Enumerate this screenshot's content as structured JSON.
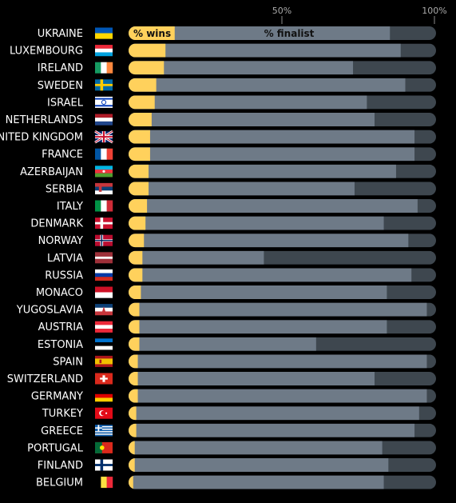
{
  "chart_data": {
    "type": "bar",
    "orientation": "horizontal",
    "stacked": true,
    "axis_ticks": [
      "50%",
      "100%"
    ],
    "xlim": [
      0,
      100
    ],
    "series_labels": {
      "wins": "% wins",
      "finalist": "% finalist"
    },
    "colors": {
      "wins": "#ffd15c",
      "finalist": "#6e7a87",
      "remainder": "#3e474f",
      "label": "#ffffff",
      "background": "#000000"
    },
    "rows": [
      {
        "country": "UKRAINE",
        "flag": "ukraine-flag",
        "wins": 15,
        "finalist": 85
      },
      {
        "country": "LUXEMBOURG",
        "flag": "luxembourg-flag",
        "wins": 12,
        "finalist": 88.5
      },
      {
        "country": "IRELAND",
        "flag": "ireland-flag",
        "wins": 11.5,
        "finalist": 73
      },
      {
        "country": "SWEDEN",
        "flag": "sweden-flag",
        "wins": 9,
        "finalist": 90
      },
      {
        "country": "ISRAEL",
        "flag": "israel-flag",
        "wins": 8.5,
        "finalist": 77.5
      },
      {
        "country": "NETHERLANDS",
        "flag": "netherlands-flag",
        "wins": 7.5,
        "finalist": 80
      },
      {
        "country": "UNITED KINGDOM",
        "flag": "united-kingdom-flag",
        "wins": 7,
        "finalist": 93
      },
      {
        "country": "FRANCE",
        "flag": "france-flag",
        "wins": 7,
        "finalist": 93
      },
      {
        "country": "AZERBAIJAN",
        "flag": "azerbaijan-flag",
        "wins": 6.5,
        "finalist": 87
      },
      {
        "country": "SERBIA",
        "flag": "serbia-flag",
        "wins": 6.5,
        "finalist": 73.5
      },
      {
        "country": "ITALY",
        "flag": "italy-flag",
        "wins": 6,
        "finalist": 94
      },
      {
        "country": "DENMARK",
        "flag": "denmark-flag",
        "wins": 5.5,
        "finalist": 83
      },
      {
        "country": "NORWAY",
        "flag": "norway-flag",
        "wins": 5,
        "finalist": 91
      },
      {
        "country": "LATVIA",
        "flag": "latvia-flag",
        "wins": 4.5,
        "finalist": 44
      },
      {
        "country": "RUSSIA",
        "flag": "russia-flag",
        "wins": 4.5,
        "finalist": 92
      },
      {
        "country": "MONACO",
        "flag": "monaco-flag",
        "wins": 4,
        "finalist": 84
      },
      {
        "country": "YUGOSLAVIA",
        "flag": "yugoslavia-flag",
        "wins": 3.5,
        "finalist": 97
      },
      {
        "country": "AUSTRIA",
        "flag": "austria-flag",
        "wins": 3.5,
        "finalist": 84
      },
      {
        "country": "ESTONIA",
        "flag": "estonia-flag",
        "wins": 3.5,
        "finalist": 61
      },
      {
        "country": "SPAIN",
        "flag": "spain-flag",
        "wins": 3,
        "finalist": 97
      },
      {
        "country": "SWITZERLAND",
        "flag": "switzerland-flag",
        "wins": 3,
        "finalist": 80
      },
      {
        "country": "GERMANY",
        "flag": "germany-flag",
        "wins": 3,
        "finalist": 97
      },
      {
        "country": "TURKEY",
        "flag": "turkey-flag",
        "wins": 2.5,
        "finalist": 94.5
      },
      {
        "country": "GREECE",
        "flag": "greece-flag",
        "wins": 2.5,
        "finalist": 93
      },
      {
        "country": "PORTUGAL",
        "flag": "portugal-flag",
        "wins": 2,
        "finalist": 82.5
      },
      {
        "country": "FINLAND",
        "flag": "finland-flag",
        "wins": 2,
        "finalist": 84.5
      },
      {
        "country": "BELGIUM",
        "flag": "belgium-flag",
        "wins": 1.5,
        "finalist": 83
      }
    ]
  }
}
